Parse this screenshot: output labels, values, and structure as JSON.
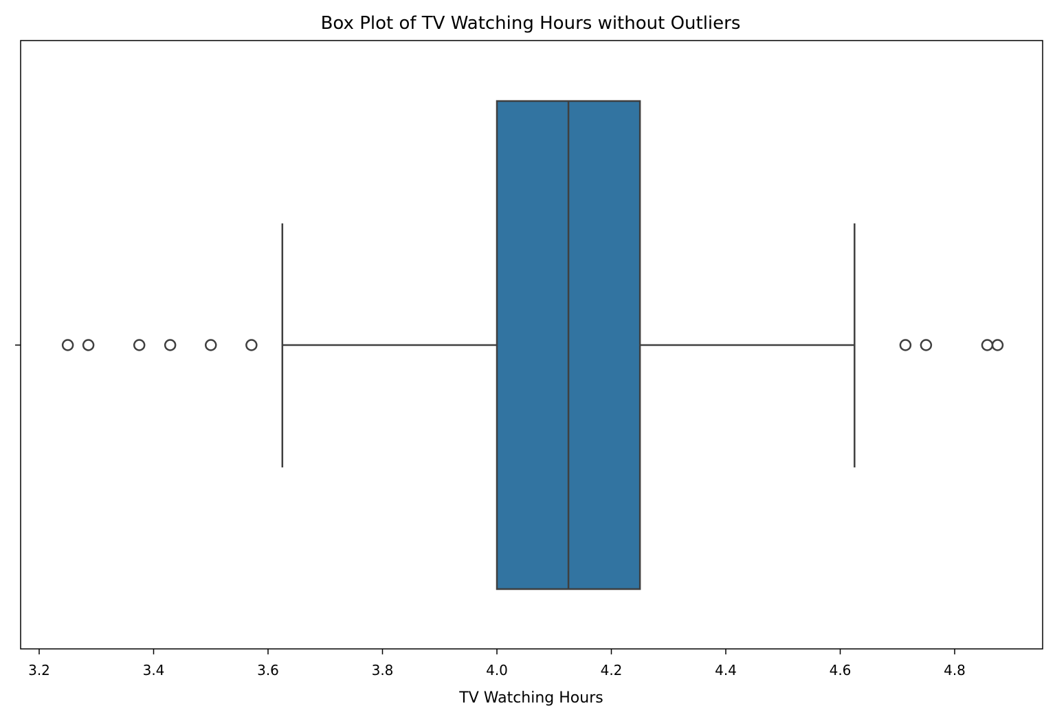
{
  "chart_data": {
    "type": "box",
    "title": "Box Plot of TV Watching Hours without Outliers",
    "xlabel": "TV Watching Hours",
    "ylabel": "",
    "xlim": [
      3.2,
      4.95
    ],
    "xticks": [
      3.2,
      3.4,
      3.6,
      3.8,
      4.0,
      4.2,
      4.4,
      4.6,
      4.8
    ],
    "xtick_labels": [
      "3.2",
      "3.4",
      "3.6",
      "3.8",
      "4.0",
      "4.2",
      "4.4",
      "4.6",
      "4.8"
    ],
    "grid": false,
    "box": {
      "whisker_low": 3.625,
      "q1": 4.0,
      "median": 4.125,
      "q3": 4.25,
      "whisker_high": 4.625
    },
    "fliers": [
      3.25,
      3.286,
      3.375,
      3.429,
      3.5,
      3.571,
      4.714,
      4.75,
      4.857,
      4.875
    ],
    "colors": {
      "box_fill": "#3274a1",
      "line": "#3f3f3f",
      "axes": "#000000"
    }
  }
}
